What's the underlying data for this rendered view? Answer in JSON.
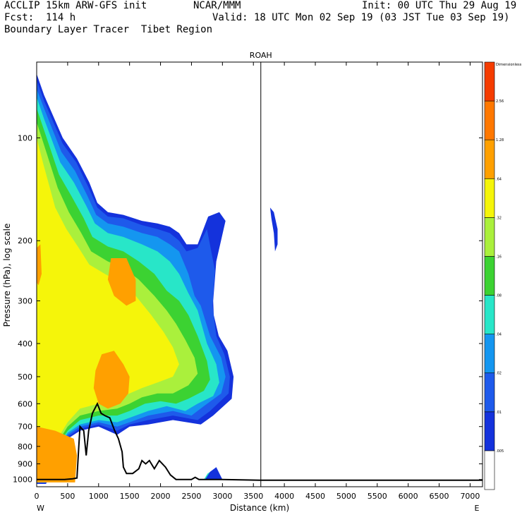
{
  "header": {
    "left1": "ACCLIP 15km ARW-GFS init",
    "mid1": "NCAR/MMM",
    "right1": "Init: 00 UTC Thu 29 Aug 19",
    "left2": "Fcst:  114 h",
    "right2": "Valid: 18 UTC Mon 02 Sep 19 (03 JST Tue 03 Sep 19)",
    "left3": "Boundary Layer Tracer  Tibet Region"
  },
  "chart_data": {
    "type": "heatmap",
    "title": "",
    "marker_label": "ROAH",
    "marker_x": 3620,
    "xlabel": "Distance (km)",
    "ylabel": "Pressure (hPa), log scale",
    "xlim": [
      0,
      7200
    ],
    "ylim": [
      1050,
      60
    ],
    "yscale": "log",
    "x_ticks": [
      0,
      500,
      1000,
      1500,
      2000,
      2500,
      3000,
      3500,
      4000,
      4500,
      5000,
      5500,
      6000,
      6500,
      7000
    ],
    "y_ticks": [
      1000,
      900,
      800,
      700,
      600,
      500,
      400,
      300,
      200,
      100
    ],
    "x_end_labels": [
      "W",
      "E"
    ],
    "colorbar": {
      "levels": [
        ".005",
        ".01",
        ".02",
        ".04",
        ".08",
        ".16",
        ".32",
        ".64",
        "1.28",
        "2.56",
        "Dimensionless"
      ],
      "colors": [
        "#ffffff",
        "#1432dc",
        "#1e5aeb",
        "#1496f0",
        "#28e6c8",
        "#3cd232",
        "#aaf03c",
        "#f5f50a",
        "#ffa000",
        "#ff7800",
        "#f53c00"
      ]
    },
    "tracer_regions": [
      {
        "level": 1,
        "color": "#1432dc",
        "polygon": [
          [
            0,
            65
          ],
          [
            120,
            75
          ],
          [
            420,
            100
          ],
          [
            650,
            115
          ],
          [
            850,
            135
          ],
          [
            980,
            155
          ],
          [
            1150,
            165
          ],
          [
            1400,
            168
          ],
          [
            1700,
            175
          ],
          [
            1950,
            178
          ],
          [
            2150,
            182
          ],
          [
            2300,
            190
          ],
          [
            2420,
            205
          ],
          [
            2600,
            205
          ],
          [
            2770,
            170
          ],
          [
            2950,
            165
          ],
          [
            3050,
            175
          ],
          [
            2900,
            230
          ],
          [
            2850,
            300
          ],
          [
            2860,
            330
          ],
          [
            2940,
            380
          ],
          [
            3080,
            420
          ],
          [
            3180,
            500
          ],
          [
            3150,
            580
          ],
          [
            2850,
            650
          ],
          [
            2650,
            690
          ],
          [
            2200,
            670
          ],
          [
            1800,
            690
          ],
          [
            1500,
            700
          ],
          [
            1300,
            740
          ],
          [
            1000,
            700
          ],
          [
            700,
            720
          ],
          [
            500,
            760
          ],
          [
            300,
            900
          ],
          [
            150,
            1030
          ],
          [
            0,
            1030
          ]
        ]
      },
      {
        "level": 2,
        "color": "#1e5aeb",
        "polygon": [
          [
            0,
            68
          ],
          [
            120,
            78
          ],
          [
            420,
            104
          ],
          [
            640,
            118
          ],
          [
            840,
            140
          ],
          [
            980,
            160
          ],
          [
            1150,
            170
          ],
          [
            1400,
            172
          ],
          [
            1700,
            180
          ],
          [
            1950,
            185
          ],
          [
            2150,
            190
          ],
          [
            2300,
            200
          ],
          [
            2420,
            215
          ],
          [
            2600,
            210
          ],
          [
            2750,
            185
          ],
          [
            2880,
            245
          ],
          [
            2840,
            310
          ],
          [
            2900,
            380
          ],
          [
            3030,
            430
          ],
          [
            3120,
            500
          ],
          [
            3100,
            560
          ],
          [
            2800,
            630
          ],
          [
            2600,
            670
          ],
          [
            2200,
            650
          ],
          [
            1800,
            670
          ],
          [
            1500,
            690
          ],
          [
            1300,
            720
          ],
          [
            1000,
            690
          ],
          [
            700,
            710
          ],
          [
            500,
            750
          ],
          [
            300,
            880
          ],
          [
            150,
            1025
          ],
          [
            0,
            1025
          ]
        ]
      },
      {
        "level": 3,
        "color": "#1496f0",
        "polygon": [
          [
            0,
            72
          ],
          [
            120,
            82
          ],
          [
            400,
            110
          ],
          [
            620,
            125
          ],
          [
            820,
            148
          ],
          [
            960,
            168
          ],
          [
            1150,
            178
          ],
          [
            1400,
            182
          ],
          [
            1700,
            190
          ],
          [
            1950,
            195
          ],
          [
            2150,
            205
          ],
          [
            2300,
            215
          ],
          [
            2450,
            250
          ],
          [
            2550,
            290
          ],
          [
            2650,
            310
          ],
          [
            2800,
            380
          ],
          [
            2980,
            440
          ],
          [
            3050,
            500
          ],
          [
            2980,
            560
          ],
          [
            2700,
            610
          ],
          [
            2500,
            650
          ],
          [
            2200,
            630
          ],
          [
            1800,
            650
          ],
          [
            1500,
            680
          ],
          [
            1300,
            700
          ],
          [
            1000,
            680
          ],
          [
            700,
            700
          ],
          [
            500,
            740
          ],
          [
            300,
            860
          ],
          [
            150,
            1020
          ],
          [
            0,
            1020
          ]
        ]
      },
      {
        "level": 4,
        "color": "#28e6c8",
        "polygon": [
          [
            0,
            76
          ],
          [
            120,
            88
          ],
          [
            380,
            118
          ],
          [
            600,
            135
          ],
          [
            800,
            158
          ],
          [
            940,
            178
          ],
          [
            1150,
            190
          ],
          [
            1400,
            195
          ],
          [
            1700,
            205
          ],
          [
            1950,
            215
          ],
          [
            2150,
            230
          ],
          [
            2300,
            250
          ],
          [
            2450,
            285
          ],
          [
            2600,
            320
          ],
          [
            2750,
            400
          ],
          [
            2900,
            460
          ],
          [
            2950,
            520
          ],
          [
            2850,
            570
          ],
          [
            2600,
            600
          ],
          [
            2400,
            630
          ],
          [
            2100,
            610
          ],
          [
            1800,
            630
          ],
          [
            1500,
            660
          ],
          [
            1300,
            680
          ],
          [
            1000,
            670
          ],
          [
            700,
            690
          ],
          [
            500,
            730
          ],
          [
            300,
            840
          ],
          [
            150,
            1010
          ],
          [
            0,
            1010
          ]
        ]
      },
      {
        "level": 5,
        "color": "#3cd232",
        "polygon": [
          [
            0,
            82
          ],
          [
            120,
            95
          ],
          [
            360,
            128
          ],
          [
            560,
            148
          ],
          [
            760,
            172
          ],
          [
            900,
            195
          ],
          [
            1150,
            208
          ],
          [
            1400,
            215
          ],
          [
            1650,
            230
          ],
          [
            1900,
            250
          ],
          [
            2100,
            280
          ],
          [
            2300,
            300
          ],
          [
            2450,
            330
          ],
          [
            2600,
            380
          ],
          [
            2750,
            450
          ],
          [
            2800,
            510
          ],
          [
            2700,
            550
          ],
          [
            2450,
            580
          ],
          [
            2250,
            600
          ],
          [
            2000,
            590
          ],
          [
            1750,
            600
          ],
          [
            1500,
            630
          ],
          [
            1300,
            650
          ],
          [
            1000,
            650
          ],
          [
            700,
            670
          ],
          [
            500,
            720
          ],
          [
            300,
            820
          ],
          [
            150,
            1000
          ],
          [
            0,
            1000
          ]
        ]
      },
      {
        "level": 6,
        "color": "#aaf03c",
        "polygon": [
          [
            0,
            90
          ],
          [
            120,
            105
          ],
          [
            340,
            140
          ],
          [
            520,
            165
          ],
          [
            720,
            190
          ],
          [
            880,
            215
          ],
          [
            1150,
            230
          ],
          [
            1400,
            240
          ],
          [
            1650,
            260
          ],
          [
            1900,
            290
          ],
          [
            2100,
            320
          ],
          [
            2250,
            350
          ],
          [
            2400,
            390
          ],
          [
            2550,
            440
          ],
          [
            2600,
            490
          ],
          [
            2450,
            530
          ],
          [
            2200,
            560
          ],
          [
            1950,
            560
          ],
          [
            1700,
            575
          ],
          [
            1500,
            600
          ],
          [
            1300,
            620
          ],
          [
            1000,
            630
          ],
          [
            700,
            650
          ],
          [
            500,
            700
          ],
          [
            300,
            800
          ],
          [
            150,
            990
          ],
          [
            0,
            990
          ]
        ]
      },
      {
        "level": 7,
        "color": "#f5f50a",
        "polygon": [
          [
            0,
            100
          ],
          [
            100,
            118
          ],
          [
            300,
            160
          ],
          [
            480,
            185
          ],
          [
            680,
            210
          ],
          [
            850,
            235
          ],
          [
            1100,
            250
          ],
          [
            1350,
            265
          ],
          [
            1600,
            290
          ],
          [
            1850,
            330
          ],
          [
            2050,
            370
          ],
          [
            2200,
            410
          ],
          [
            2300,
            460
          ],
          [
            2200,
            500
          ],
          [
            1950,
            520
          ],
          [
            1700,
            540
          ],
          [
            1500,
            560
          ],
          [
            1300,
            580
          ],
          [
            1000,
            600
          ],
          [
            700,
            620
          ],
          [
            500,
            680
          ],
          [
            300,
            780
          ],
          [
            150,
            980
          ],
          [
            0,
            980
          ]
        ]
      },
      {
        "level": 8,
        "color": "#ffa000",
        "polygon": [
          [
            1050,
            430
          ],
          [
            1250,
            420
          ],
          [
            1400,
            460
          ],
          [
            1500,
            500
          ],
          [
            1480,
            560
          ],
          [
            1350,
            600
          ],
          [
            1150,
            620
          ],
          [
            1000,
            600
          ],
          [
            920,
            540
          ],
          [
            950,
            480
          ]
        ]
      },
      {
        "level": 8,
        "color": "#ffa000",
        "polygon": [
          [
            1200,
            225
          ],
          [
            1450,
            225
          ],
          [
            1600,
            260
          ],
          [
            1600,
            300
          ],
          [
            1450,
            310
          ],
          [
            1250,
            290
          ],
          [
            1150,
            260
          ]
        ]
      },
      {
        "level": 8,
        "color": "#ffa000",
        "polygon": [
          [
            0,
            700
          ],
          [
            300,
            720
          ],
          [
            600,
            760
          ],
          [
            650,
            850
          ],
          [
            620,
            1020
          ],
          [
            0,
            1020
          ]
        ]
      },
      {
        "level": 8,
        "color": "#ffa000",
        "polygon": [
          [
            0,
            210
          ],
          [
            60,
            205
          ],
          [
            80,
            250
          ],
          [
            30,
            270
          ],
          [
            0,
            265
          ]
        ]
      },
      {
        "level": 4,
        "color": "#28e6c8",
        "polygon": [
          [
            2760,
            960
          ],
          [
            2880,
            930
          ],
          [
            2950,
            1000
          ],
          [
            2700,
            1000
          ]
        ]
      },
      {
        "level": 1,
        "color": "#1432dc",
        "polygon": [
          [
            2800,
            950
          ],
          [
            2900,
            920
          ],
          [
            3000,
            1000
          ],
          [
            2720,
            1000
          ]
        ]
      },
      {
        "level": 1,
        "color": "#1432dc",
        "polygon": [
          [
            3770,
            160
          ],
          [
            3830,
            165
          ],
          [
            3890,
            185
          ],
          [
            3890,
            205
          ],
          [
            3850,
            215
          ],
          [
            3830,
            190
          ],
          [
            3790,
            172
          ]
        ]
      }
    ],
    "terrain": [
      [
        0,
        1000
      ],
      [
        450,
        1000
      ],
      [
        580,
        995
      ],
      [
        650,
        990
      ],
      [
        680,
        800
      ],
      [
        700,
        700
      ],
      [
        760,
        720
      ],
      [
        800,
        850
      ],
      [
        840,
        720
      ],
      [
        900,
        640
      ],
      [
        980,
        600
      ],
      [
        1040,
        640
      ],
      [
        1100,
        650
      ],
      [
        1180,
        660
      ],
      [
        1260,
        720
      ],
      [
        1320,
        760
      ],
      [
        1380,
        830
      ],
      [
        1400,
        920
      ],
      [
        1450,
        960
      ],
      [
        1550,
        960
      ],
      [
        1650,
        930
      ],
      [
        1700,
        880
      ],
      [
        1760,
        900
      ],
      [
        1820,
        880
      ],
      [
        1900,
        930
      ],
      [
        1980,
        880
      ],
      [
        2080,
        920
      ],
      [
        2160,
        970
      ],
      [
        2250,
        1000
      ],
      [
        2500,
        1000
      ],
      [
        2560,
        985
      ],
      [
        2620,
        1000
      ],
      [
        3000,
        1000
      ],
      [
        3600,
        1005
      ],
      [
        7200,
        1005
      ]
    ]
  }
}
